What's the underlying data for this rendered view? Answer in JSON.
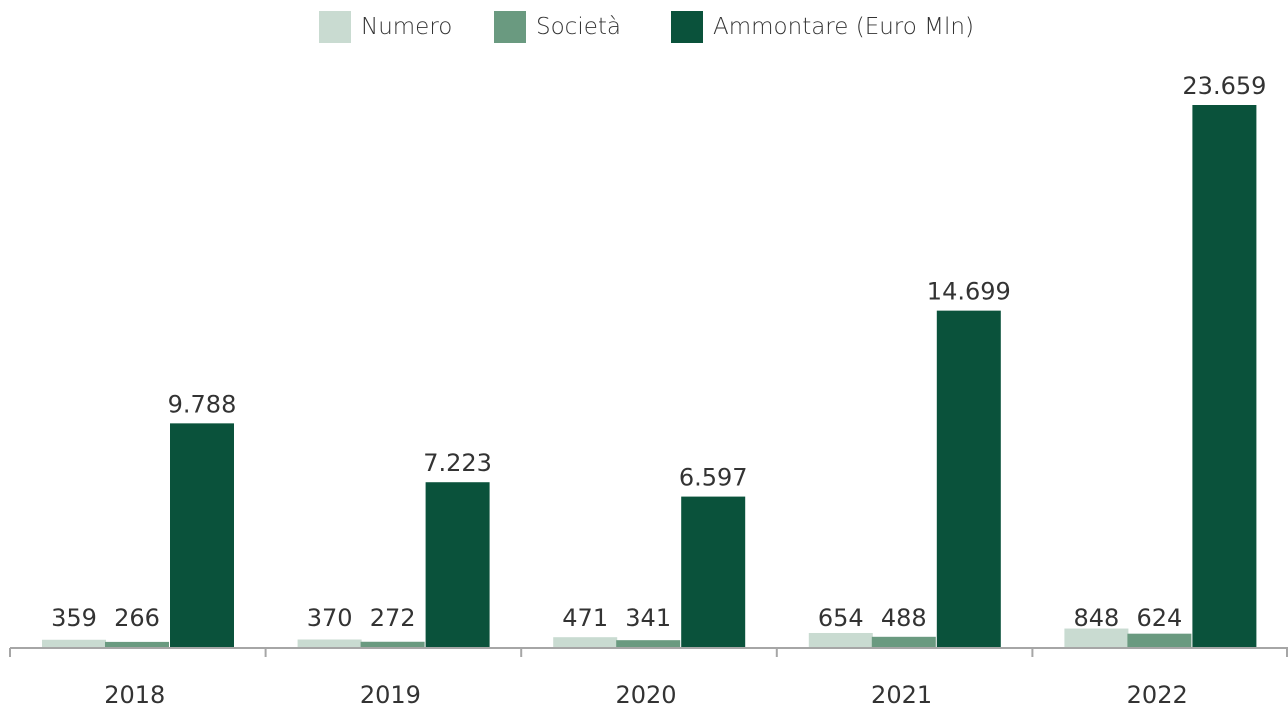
{
  "chart_data": {
    "type": "bar",
    "title": "",
    "xlabel": "",
    "ylabel": "",
    "categories": [
      "2018",
      "2019",
      "2020",
      "2021",
      "2022"
    ],
    "series": [
      {
        "name": "Numero",
        "values": [
          359,
          370,
          471,
          654,
          848
        ],
        "labels": [
          "359",
          "370",
          "471",
          "654",
          "848"
        ],
        "color": "#c9dbd1"
      },
      {
        "name": "Società",
        "values": [
          266,
          272,
          341,
          488,
          624
        ],
        "labels": [
          "266",
          "272",
          "341",
          "488",
          "624"
        ],
        "color": "#6a9a80"
      },
      {
        "name": "Ammontare (Euro Mln)",
        "values": [
          9788,
          7223,
          6597,
          14699,
          23659
        ],
        "labels": [
          "9.788",
          "7.223",
          "6.597",
          "14.699",
          "23.659"
        ],
        "color": "#0a523b"
      }
    ],
    "ylim": [
      0,
      25000
    ],
    "grid": false,
    "legend_position": "top-center",
    "axis_color": "#a6a6a6"
  }
}
